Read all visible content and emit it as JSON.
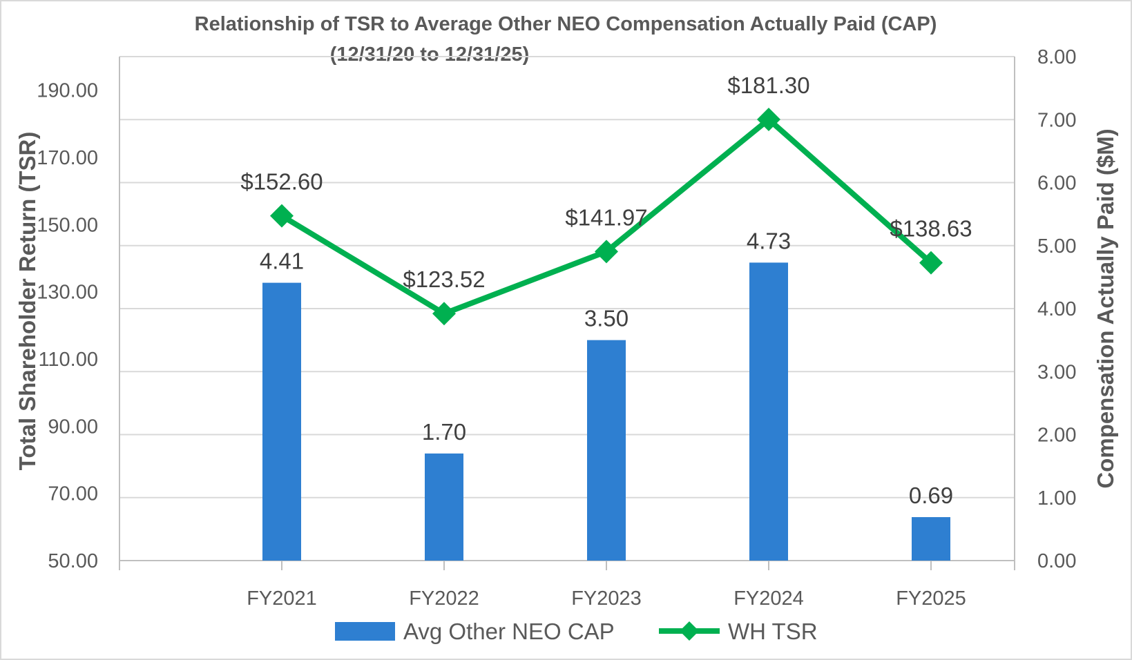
{
  "chart_data": {
    "type": "bar",
    "title": "Relationship of TSR to Average Other NEO Compensation Actually Paid (CAP)",
    "subtitle": "(12/31/20 to 12/31/25)",
    "categories": [
      "FY2021",
      "FY2022",
      "FY2023",
      "FY2024",
      "FY2025"
    ],
    "series": [
      {
        "name": "Avg Other NEO CAP",
        "type": "bar",
        "axis": "right",
        "color": "#2e7fd1",
        "values": [
          4.41,
          1.7,
          3.5,
          4.73,
          0.69
        ],
        "labels": [
          "4.41",
          "1.70",
          "3.50",
          "4.73",
          "0.69"
        ]
      },
      {
        "name": "WH TSR",
        "type": "line",
        "marker": "diamond",
        "axis": "left",
        "color": "#00b050",
        "values": [
          152.6,
          123.52,
          141.97,
          181.3,
          138.63
        ],
        "labels": [
          "$152.60",
          "$123.52",
          "$141.97",
          "$181.30",
          "$138.63"
        ]
      }
    ],
    "ylabel": "Total Shareholder Return (TSR)",
    "y2label": "Compensation Actually Paid ($M)",
    "ylim": [
      50,
      200
    ],
    "yticks": [
      "50.00",
      "70.00",
      "90.00",
      "110.00",
      "130.00",
      "150.00",
      "170.00",
      "190.00"
    ],
    "y2lim": [
      0,
      8
    ],
    "y2ticks": [
      "0.00",
      "1.00",
      "2.00",
      "3.00",
      "4.00",
      "5.00",
      "6.00",
      "7.00",
      "8.00"
    ],
    "grid": true,
    "legend": "bottom"
  }
}
